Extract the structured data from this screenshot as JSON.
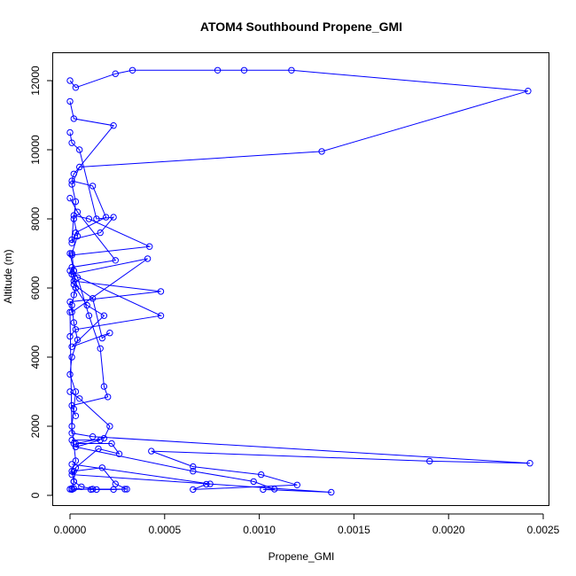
{
  "chart_data": {
    "type": "line",
    "title": "ATOM4 Southbound Propene_GMI",
    "xlabel": "Propene_GMI",
    "ylabel": "Altitude (m)",
    "xlim": [
      0,
      0.0025
    ],
    "ylim": [
      0,
      12500
    ],
    "x_ticks": [
      "0.0000",
      "0.0005",
      "0.0010",
      "0.0015",
      "0.0020",
      "0.0025"
    ],
    "x_tick_values": [
      0,
      0.0005,
      0.001,
      0.0015,
      0.002,
      0.0025
    ],
    "y_ticks": [
      "0",
      "2000",
      "4000",
      "6000",
      "8000",
      "10000",
      "12000"
    ],
    "y_tick_values": [
      0,
      2000,
      4000,
      6000,
      8000,
      10000,
      12000
    ],
    "line_color": "#0000ff",
    "marker": "open-circle",
    "grid": false,
    "legend": "none",
    "series": [
      {
        "x": [
          0.0,
          3e-05,
          0.00024,
          0.00033,
          0.00078,
          0.00092,
          0.00117,
          0.00242,
          0.00133,
          5e-05,
          1e-05,
          3e-05,
          2e-05,
          4e-05,
          1e-05,
          2e-05,
          3e-05,
          1e-05,
          2e-05,
          4e-05,
          1e-05,
          0.0,
          3e-05,
          2e-05,
          1e-05,
          2e-05,
          3e-05,
          1e-05,
          2e-05,
          1e-05,
          0.0
        ],
        "y": [
          12000,
          11800,
          12200,
          12300,
          12300,
          12300,
          12300,
          11700,
          9950,
          9500,
          9000,
          8500,
          8000,
          7500,
          7000,
          6500,
          6000,
          5500,
          5000,
          4500,
          4000,
          3500,
          3000,
          2500,
          2000,
          1500,
          1000,
          700,
          400,
          200,
          180
        ]
      },
      {
        "x": [
          0.0,
          2e-05,
          0.00023,
          2e-05,
          1e-05,
          0.00012,
          0.00019,
          3e-05,
          1e-05
        ],
        "y": [
          11400,
          10900,
          10700,
          9300,
          9100,
          8950,
          8050,
          7600,
          7300
        ]
      },
      {
        "x": [
          0.0,
          1e-05,
          5e-05,
          0.00014,
          0.00023,
          0.00016,
          1e-05,
          2e-05,
          0.0001,
          0.00042,
          1e-05
        ],
        "y": [
          10500,
          10200,
          10000,
          8000,
          8050,
          7600,
          7400,
          8100,
          8000,
          7200,
          6950
        ]
      },
      {
        "x": [
          0.0,
          4e-05,
          0.00024,
          1e-05,
          2e-05,
          0.00048,
          0.0,
          1e-05,
          0.00041,
          1e-05,
          0.00048,
          3e-05,
          0.0
        ],
        "y": [
          8600,
          8200,
          6800,
          6600,
          6200,
          5900,
          5600,
          5300,
          6850,
          6400,
          5200,
          4800,
          4600
        ]
      },
      {
        "x": [
          0.0,
          2e-05,
          0.00012,
          0.00017,
          0.00021,
          1e-05,
          0.00018,
          9e-05,
          3e-05,
          2e-05
        ],
        "y": [
          6500,
          6100,
          5700,
          4550,
          4700,
          4300,
          5200,
          5500,
          6000,
          5800
        ]
      },
      {
        "x": [
          0.0,
          2e-05,
          4e-05,
          0.0001,
          0.00016,
          0.00018,
          0.0002,
          1e-05,
          3e-05
        ],
        "y": [
          7000,
          6500,
          6300,
          5200,
          4250,
          3150,
          2850,
          2600,
          2300
        ]
      },
      {
        "x": [
          0.0,
          1e-05,
          0.00012,
          0.00243,
          0.0019,
          0.00043,
          0.00065,
          0.00101,
          0.0012,
          0.00065,
          0.00072,
          0.00074,
          1e-05
        ],
        "y": [
          5300,
          1800,
          1700,
          930,
          990,
          1280,
          830,
          600,
          300,
          170,
          320,
          330,
          900
        ]
      },
      {
        "x": [
          1e-05,
          0.00016,
          3e-05,
          0.00065,
          0.00097,
          0.00108,
          0.00102,
          0.00138,
          1e-05,
          2e-05,
          0.00017,
          0.00024,
          0.0003,
          0.00011,
          2e-05
        ],
        "y": [
          1600,
          1600,
          1400,
          700,
          400,
          180,
          170,
          90,
          600,
          700,
          800,
          330,
          180,
          170,
          200
        ]
      },
      {
        "x": [
          0.0,
          5e-05,
          0.00021,
          0.00018,
          3e-05,
          0.00022,
          0.00026,
          0.00015,
          3e-05,
          2e-05,
          6e-05,
          0.00014,
          0.00023,
          0.00029,
          0.00012,
          1e-05
        ],
        "y": [
          3000,
          2800,
          2000,
          1650,
          1500,
          1500,
          1200,
          1350,
          800,
          400,
          250,
          170,
          170,
          180,
          180,
          170
        ]
      }
    ]
  }
}
